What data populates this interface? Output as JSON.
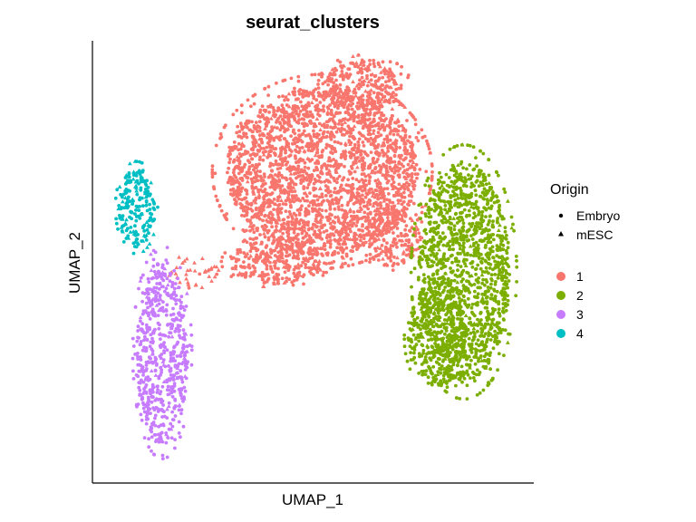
{
  "chart_data": {
    "type": "scatter",
    "title": "seurat_clusters",
    "xlabel": "UMAP_1",
    "ylabel": "UMAP_2",
    "xlim": [
      -12,
      12
    ],
    "ylim": [
      -10,
      12
    ],
    "grid": false,
    "axis_ticks_shown": false,
    "legend_position": "right",
    "shape_legend": {
      "title": "Origin",
      "entries": [
        {
          "label": "Embryo",
          "shape": "circle"
        },
        {
          "label": "mESC",
          "shape": "triangle"
        }
      ]
    },
    "color_legend": {
      "entries": [
        {
          "label": "1",
          "color": "#F8766D"
        },
        {
          "label": "2",
          "color": "#7CAE00"
        },
        {
          "label": "3",
          "color": "#C77CFF"
        },
        {
          "label": "4",
          "color": "#00BFC4"
        }
      ]
    },
    "series": [
      {
        "name": "1",
        "color": "#F8766D",
        "regions": [
          {
            "cx": 0.5,
            "cy": 5.5,
            "rx": 5.2,
            "ry": 4.2,
            "n": 2600,
            "mesc_fraction": 0.08
          },
          {
            "cx": 2.8,
            "cy": 9.8,
            "rx": 2.2,
            "ry": 1.3,
            "n": 260,
            "mesc_fraction": 0.15
          },
          {
            "cx": -2.0,
            "cy": 1.0,
            "rx": 2.6,
            "ry": 1.1,
            "n": 300,
            "mesc_fraction": 0.1
          },
          {
            "cx": 4.3,
            "cy": 2.2,
            "rx": 1.6,
            "ry": 1.4,
            "n": 180,
            "mesc_fraction": 0.12
          },
          {
            "cx": -6.5,
            "cy": 0.5,
            "rx": 1.6,
            "ry": 0.7,
            "n": 40,
            "mesc_fraction": 0.9
          }
        ]
      },
      {
        "name": "2",
        "color": "#7CAE00",
        "regions": [
          {
            "cx": 8.2,
            "cy": 0.5,
            "rx": 2.5,
            "ry": 5.5,
            "n": 1450,
            "mesc_fraction": 0.05
          },
          {
            "cx": 6.8,
            "cy": -2.8,
            "rx": 1.6,
            "ry": 2.4,
            "n": 350,
            "mesc_fraction": 0.05
          }
        ]
      },
      {
        "name": "3",
        "color": "#C77CFF",
        "regions": [
          {
            "cx": -8.2,
            "cy": -3.5,
            "rx": 1.4,
            "ry": 4.6,
            "n": 620,
            "mesc_fraction": 0.06
          }
        ]
      },
      {
        "name": "4",
        "color": "#00BFC4",
        "regions": [
          {
            "cx": -9.6,
            "cy": 3.7,
            "rx": 1.0,
            "ry": 2.0,
            "n": 210,
            "mesc_fraction": 0.25
          }
        ]
      }
    ]
  }
}
